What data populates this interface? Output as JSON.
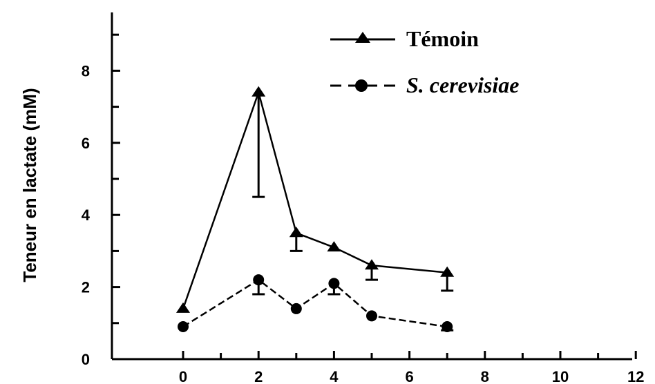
{
  "chart_data": {
    "type": "line",
    "title": "",
    "xlabel": "",
    "ylabel": "Teneur en lactate (mM)",
    "xlim": [
      0,
      12
    ],
    "ylim": [
      0,
      9
    ],
    "x_ticks": [
      "0",
      "2",
      "4",
      "6",
      "8",
      "10",
      "12"
    ],
    "y_ticks": [
      "0",
      "2",
      "4",
      "6",
      "8"
    ],
    "grid": false,
    "legend_position": "top-right",
    "series": [
      {
        "name": "Témoin",
        "marker": "triangle",
        "line_style": "solid",
        "color": "#000000",
        "x": [
          0,
          2,
          3,
          4,
          5,
          7
        ],
        "y": [
          1.4,
          7.4,
          3.5,
          3.1,
          2.6,
          2.4
        ],
        "error_low": [
          0,
          2.9,
          0.5,
          0,
          0.4,
          0.5
        ],
        "error_high": [
          0,
          0,
          0,
          0,
          0,
          0
        ]
      },
      {
        "name": "S. cerevisiae",
        "marker": "circle",
        "line_style": "dashed",
        "color": "#000000",
        "x": [
          0,
          2,
          3,
          4,
          5,
          7
        ],
        "y": [
          0.9,
          2.2,
          1.4,
          2.1,
          1.2,
          0.9
        ],
        "error_low": [
          0,
          0.4,
          0,
          0.3,
          0,
          0.1
        ],
        "error_high": [
          0,
          0,
          0,
          0,
          0,
          0
        ]
      }
    ]
  }
}
